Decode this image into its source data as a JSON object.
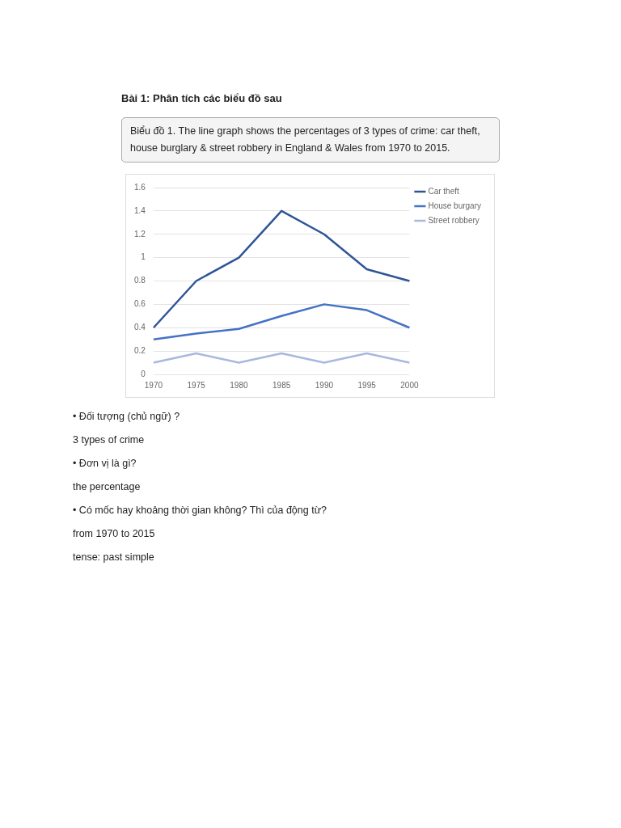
{
  "chart_data": {
    "type": "line",
    "title": "Bài 1: Phân tích các biểu đồ sau",
    "subtitle": "Biểu đồ 1. The line graph shows the percentages of 3 types of crime: car theft, house burglary & street robbery in England & Wales from 1970 to 2015.",
    "categories": [
      "1970",
      "1975",
      "1980",
      "1985",
      "1990",
      "1995",
      "2000"
    ],
    "series": [
      {
        "name": "Car theft",
        "color": "#2f5597",
        "values": [
          0.4,
          0.8,
          1.0,
          1.4,
          1.2,
          0.9,
          0.8
        ]
      },
      {
        "name": "House burgary",
        "color": "#4472c4",
        "values": [
          0.3,
          0.35,
          0.39,
          0.5,
          0.6,
          0.55,
          0.4
        ]
      },
      {
        "name": "Street robbery",
        "color": "#a9b8e0",
        "values": [
          0.1,
          0.18,
          0.1,
          0.18,
          0.1,
          0.18,
          0.1
        ]
      }
    ],
    "ylim": [
      0,
      1.6
    ],
    "yticks": [
      0,
      0.2,
      0.4,
      0.6,
      0.8,
      1,
      1.2,
      1.4,
      1.6
    ],
    "grid": "y",
    "legend": "right",
    "marker": "none",
    "line_style": "solid",
    "annotations": [
      "• Đối tượng (chủ ngữ) ?",
      "3 types of crime",
      "• Đơn vị là gì?",
      "the percentage",
      "• Có mốc hay khoảng thời gian không? Thì của động từ?",
      "from 1970 to 2015",
      "tense: past simple"
    ]
  }
}
